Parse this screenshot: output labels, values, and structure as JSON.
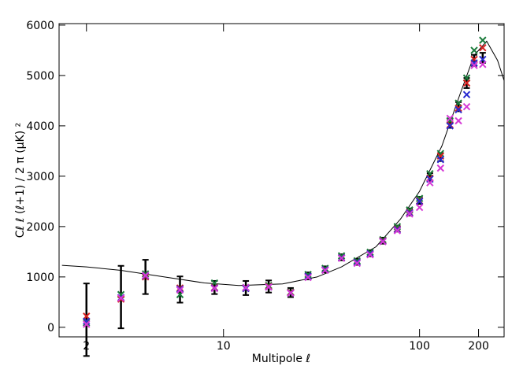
{
  "chart_data": {
    "type": "scatter",
    "xlabel": "Multipole ℓ",
    "ylabel": "Cℓ ℓ (ℓ+1) / 2 π  (μK) ²",
    "xscale": "log",
    "xlim": [
      1.45,
      270
    ],
    "ylim": [
      -190,
      6030
    ],
    "xticks": [
      2,
      10,
      100,
      200
    ],
    "yticks": [
      0,
      1000,
      2000,
      3000,
      4000,
      5000,
      6000
    ],
    "series": [
      {
        "kind": "errorbar",
        "color": "#000000",
        "x": [
          2,
          3,
          4,
          6,
          9,
          13,
          17,
          22,
          27,
          33,
          40,
          48,
          56,
          65,
          77,
          89,
          100,
          113,
          128,
          143,
          158,
          174,
          190,
          210
        ],
        "values": [
          150,
          600,
          1000,
          750,
          790,
          780,
          810,
          690,
          1020,
          1150,
          1390,
          1300,
          1470,
          1720,
          1960,
          2290,
          2520,
          2980,
          3380,
          4050,
          4380,
          4850,
          5300,
          5350
        ],
        "errors": [
          720,
          620,
          340,
          260,
          130,
          140,
          120,
          90,
          70,
          60,
          60,
          60,
          60,
          60,
          60,
          70,
          70,
          80,
          80,
          90,
          90,
          100,
          110,
          100
        ]
      },
      {
        "kind": "cross",
        "color": "#1a7a3a",
        "x": [
          2,
          3,
          4,
          6,
          9,
          13,
          17,
          22,
          27,
          33,
          40,
          48,
          56,
          65,
          77,
          89,
          100,
          113,
          128,
          143,
          158,
          174,
          190,
          210
        ],
        "values": [
          90,
          650,
          1060,
          650,
          880,
          790,
          830,
          700,
          1050,
          1170,
          1420,
          1320,
          1490,
          1740,
          2000,
          2330,
          2560,
          3050,
          3450,
          4100,
          4450,
          4950,
          5500,
          5700
        ]
      },
      {
        "kind": "cross",
        "color": "#d62020",
        "x": [
          2,
          3,
          4,
          6,
          9,
          13,
          17,
          22,
          27,
          33,
          40,
          48,
          56,
          65,
          77,
          89,
          100,
          113,
          128,
          143,
          158,
          174,
          190,
          210
        ],
        "values": [
          220,
          560,
          1000,
          780,
          790,
          770,
          810,
          690,
          1010,
          1140,
          1380,
          1290,
          1460,
          1720,
          1950,
          2280,
          2510,
          2960,
          3400,
          4020,
          4350,
          4850,
          5320,
          5550
        ]
      },
      {
        "kind": "cross",
        "color": "#2a2ad0",
        "x": [
          2,
          3,
          4,
          6,
          9,
          13,
          17,
          22,
          27,
          33,
          40,
          48,
          56,
          65,
          77,
          89,
          100,
          113,
          128,
          143,
          158,
          174,
          190,
          210
        ],
        "values": [
          120,
          590,
          1020,
          760,
          780,
          770,
          800,
          680,
          1010,
          1140,
          1380,
          1290,
          1460,
          1710,
          1940,
          2270,
          2500,
          2940,
          3330,
          4000,
          4320,
          4620,
          5250,
          5320
        ]
      },
      {
        "kind": "cross",
        "color": "#d63ad6",
        "x": [
          2,
          3,
          4,
          6,
          9,
          13,
          17,
          22,
          27,
          33,
          40,
          48,
          56,
          65,
          77,
          89,
          100,
          113,
          128,
          143,
          158,
          174,
          190,
          210
        ],
        "values": [
          60,
          580,
          1030,
          740,
          770,
          790,
          800,
          680,
          990,
          1130,
          1370,
          1270,
          1440,
          1700,
          1920,
          2250,
          2380,
          2870,
          3160,
          4150,
          4100,
          4380,
          5200,
          5220
        ]
      },
      {
        "kind": "curve",
        "color": "#000000",
        "x": [
          1.5,
          2,
          3,
          5,
          8,
          12,
          20,
          30,
          40,
          60,
          80,
          100,
          130,
          160,
          190,
          220,
          250,
          270
        ],
        "values": [
          1230,
          1200,
          1130,
          1000,
          880,
          830,
          860,
          1000,
          1200,
          1600,
          2150,
          2700,
          3600,
          4600,
          5400,
          5680,
          5300,
          4900
        ]
      }
    ]
  }
}
